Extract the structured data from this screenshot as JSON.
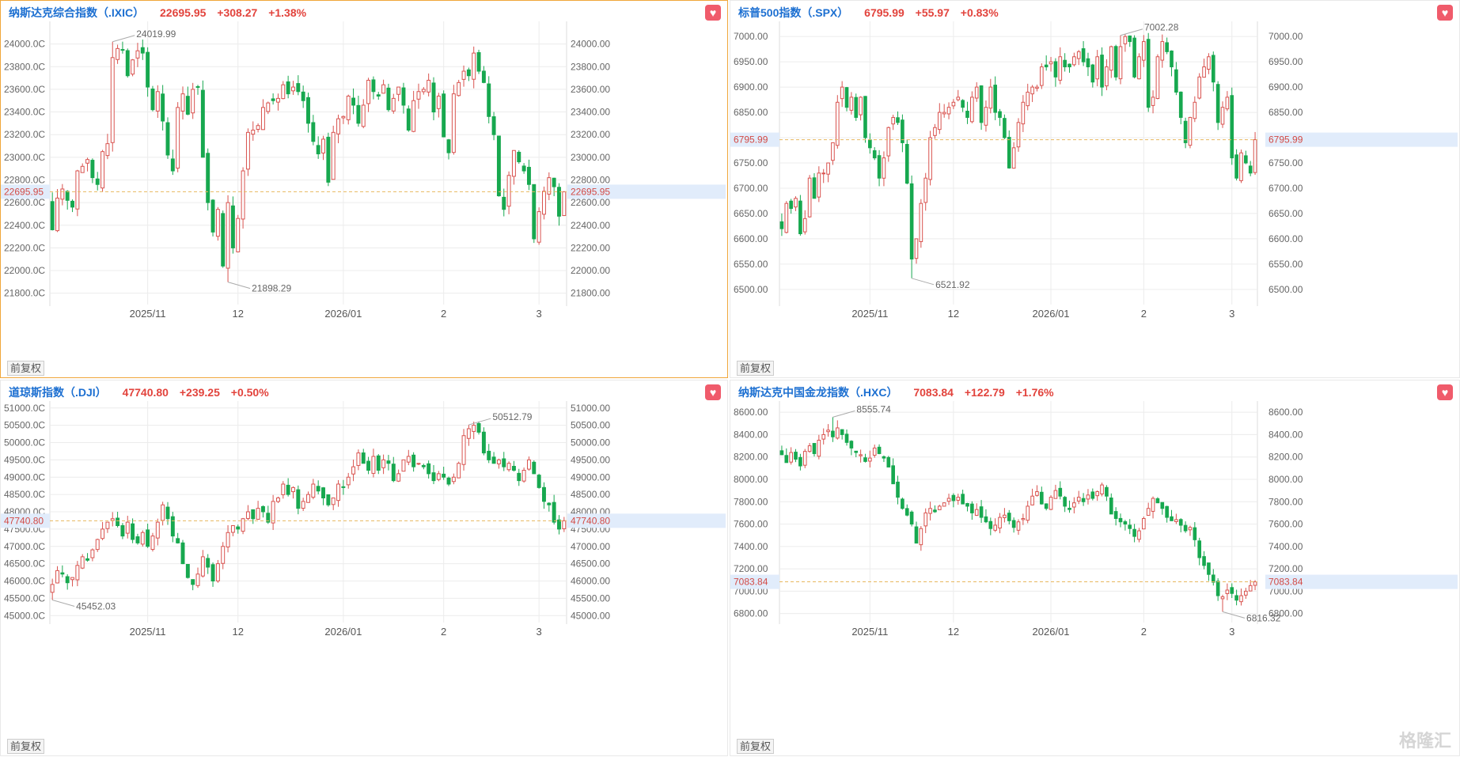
{
  "colors": {
    "up": "#d9534f",
    "down": "#17a84f",
    "grid": "#ececec",
    "ref": "#e8b85f",
    "refLabelBg": "#e1ecfb",
    "refLabelText": "#d24a45"
  },
  "adjust_label": "前复权",
  "watermark": "格隆汇",
  "panels": [
    {
      "name": "纳斯达克综合指数（.IXIC）",
      "price": "22695.95",
      "change": "+308.27",
      "pct": "+1.38%",
      "current_label": "22695.95",
      "max_label": "24019.99",
      "min_label": "21898.29"
    },
    {
      "name": "标普500指数（.SPX）",
      "price": "6795.99",
      "change": "+55.97",
      "pct": "+0.83%",
      "current_label": "6795.99",
      "max_label": "7002.28",
      "min_label": "6521.92"
    },
    {
      "name": "道琼斯指数（.DJI）",
      "price": "47740.80",
      "change": "+239.25",
      "pct": "+0.50%",
      "current_label": "47740.80",
      "max_label": "50512.79",
      "min_label": "45452.03"
    },
    {
      "name": "纳斯达克中国金龙指数（.HXC）",
      "price": "7083.84",
      "change": "+122.79",
      "pct": "+1.76%",
      "current_label": "7083.84",
      "max_label": "8555.74",
      "min_label": "6816.32"
    }
  ],
  "chart_data": [
    {
      "type": "candlestick",
      "title": "纳斯达克综合指数（.IXIC）",
      "ylim": [
        21700,
        24200
      ],
      "yticks": [
        21800,
        22000,
        22200,
        22400,
        22600,
        22800,
        23000,
        23200,
        23400,
        23600,
        23800,
        24000
      ],
      "ytick_labels_left": [
        "21800.0C",
        "22000.0C",
        "22200.0C",
        "22400.0C",
        "22600.0C",
        "22800.0C",
        "23000.0C",
        "23200.0C",
        "23400.0C",
        "23600.0C",
        "23800.0C",
        "24000.0C"
      ],
      "ytick_labels_right": [
        "21800.00",
        "22000.00",
        "22200.00",
        "22400.00",
        "22600.00",
        "22800.00",
        "23000.00",
        "23200.00",
        "23400.00",
        "23600.00",
        "23800.00",
        "24000.00"
      ],
      "xticks": [
        {
          "label": "2025/11",
          "index": 19
        },
        {
          "label": "12",
          "index": 37
        },
        {
          "label": "2026/01",
          "index": 58
        },
        {
          "label": "2",
          "index": 78
        },
        {
          "label": "3",
          "index": 97
        }
      ],
      "current": 22695.95,
      "max": {
        "value": 24019.99,
        "index": 12
      },
      "min": {
        "value": 21898.29,
        "index": 35
      },
      "n": 103,
      "start": 22580,
      "closes": [
        22360,
        22640,
        22720,
        22620,
        22560,
        22880,
        22920,
        22980,
        22820,
        22760,
        23050,
        23120,
        23880,
        23960,
        23950,
        23720,
        23860,
        23940,
        23920,
        23620,
        23420,
        23580,
        23320,
        23020,
        22880,
        23440,
        23560,
        23380,
        23600,
        23620,
        23000,
        22600,
        22340,
        22540,
        22040,
        22600,
        22200,
        22460,
        22880,
        23220,
        23240,
        23280,
        23440,
        23480,
        23500,
        23520,
        23640,
        23560,
        23620,
        23580,
        23500,
        23300,
        23140,
        23030,
        23160,
        22780,
        23220,
        23340,
        23360,
        23540,
        23460,
        23300,
        23460,
        23680,
        23580,
        23540,
        23640,
        23420,
        23520,
        23620,
        23460,
        23240,
        23500,
        23580,
        23600,
        23680,
        23400,
        23540,
        23180,
        23040,
        23560,
        23660,
        23760,
        23720,
        23920,
        23760,
        23660,
        23360,
        23200,
        22660,
        22540,
        22840,
        23060,
        22960,
        22880,
        22760,
        22280,
        22520,
        22700,
        22820,
        22740,
        22480,
        22695.95
      ]
    },
    {
      "type": "candlestick",
      "title": "标普500指数（.SPX）",
      "ylim": [
        6470,
        7030
      ],
      "yticks": [
        6500,
        6550,
        6600,
        6650,
        6700,
        6750,
        6800,
        6850,
        6900,
        6950,
        7000
      ],
      "ytick_labels_left": [
        "6500.00",
        "6550.00",
        "6600.00",
        "6650.00",
        "6700.00",
        "6750.00",
        "6800.00",
        "6850.00",
        "6900.00",
        "6950.00",
        "7000.00"
      ],
      "ytick_labels_right": [
        "6500.00",
        "6550.00",
        "6600.00",
        "6650.00",
        "6700.00",
        "6750.00",
        "6800.00",
        "6850.00",
        "6900.00",
        "6950.00",
        "7000.00"
      ],
      "xticks": [
        {
          "label": "2025/11",
          "index": 19
        },
        {
          "label": "12",
          "index": 37
        },
        {
          "label": "2026/01",
          "index": 58
        },
        {
          "label": "2",
          "index": 78
        },
        {
          "label": "3",
          "index": 97
        }
      ],
      "current": 6795.99,
      "max": {
        "value": 7002.28,
        "index": 73
      },
      "min": {
        "value": 6521.92,
        "index": 28
      },
      "n": 103,
      "start": 6640,
      "closes": [
        6620,
        6670,
        6660,
        6680,
        6610,
        6640,
        6720,
        6680,
        6730,
        6730,
        6750,
        6790,
        6870,
        6900,
        6860,
        6880,
        6840,
        6880,
        6800,
        6780,
        6760,
        6720,
        6760,
        6820,
        6840,
        6830,
        6790,
        6710,
        6560,
        6600,
        6670,
        6720,
        6800,
        6820,
        6850,
        6850,
        6860,
        6870,
        6880,
        6860,
        6840,
        6880,
        6900,
        6830,
        6860,
        6900,
        6850,
        6840,
        6800,
        6740,
        6780,
        6830,
        6870,
        6890,
        6900,
        6900,
        6940,
        6940,
        6950,
        6920,
        6960,
        6940,
        6940,
        6960,
        6970,
        6950,
        6940,
        6910,
        6960,
        6900,
        6940,
        6980,
        6920,
        6980,
        7000,
        6990,
        6920,
        6960,
        6990,
        6860,
        6880,
        6960,
        6990,
        6970,
        6940,
        6890,
        6840,
        6790,
        6840,
        6870,
        6920,
        6940,
        6960,
        6910,
        6830,
        6860,
        6880,
        6760,
        6720,
        6770,
        6750,
        6730,
        6795.99
      ]
    },
    {
      "type": "candlestick",
      "title": "道琼斯指数（.DJI）",
      "ylim": [
        44800,
        51200
      ],
      "yticks": [
        45000,
        45500,
        46000,
        46500,
        47000,
        47500,
        48000,
        48500,
        49000,
        49500,
        50000,
        50500,
        51000
      ],
      "ytick_labels_left": [
        "45000.0C",
        "45500.0C",
        "46000.0C",
        "46500.0C",
        "47000.0C",
        "47500.0C",
        "48000.0C",
        "48500.0C",
        "49000.0C",
        "49500.0C",
        "50000.0C",
        "50500.0C",
        "51000.0C"
      ],
      "ytick_labels_right": [
        "45000.00",
        "45500.00",
        "46000.00",
        "46500.00",
        "47000.00",
        "47500.00",
        "48000.00",
        "48500.00",
        "49000.00",
        "49500.00",
        "50000.00",
        "50500.00",
        "51000.00"
      ],
      "xticks": [
        {
          "label": "2025/11",
          "index": 19
        },
        {
          "label": "12",
          "index": 37
        },
        {
          "label": "2026/01",
          "index": 58
        },
        {
          "label": "2",
          "index": 78
        },
        {
          "label": "3",
          "index": 97
        }
      ],
      "current": 47740.8,
      "max": {
        "value": 50512.79,
        "index": 83
      },
      "min": {
        "value": 45452.03,
        "index": 0
      },
      "n": 103,
      "start": 45700,
      "closes": [
        45900,
        46300,
        46200,
        45950,
        46100,
        46450,
        46700,
        46600,
        46900,
        47200,
        47500,
        47700,
        47800,
        47600,
        47300,
        47700,
        47200,
        47100,
        47400,
        47000,
        47300,
        47700,
        48200,
        47800,
        47300,
        47100,
        46500,
        46100,
        45900,
        46200,
        46700,
        46400,
        46000,
        46500,
        47000,
        47400,
        47600,
        47500,
        47800,
        48000,
        47800,
        48100,
        48000,
        47700,
        48300,
        48400,
        48800,
        48500,
        48700,
        48100,
        48300,
        48500,
        48800,
        48600,
        48400,
        48200,
        48400,
        48800,
        48700,
        49000,
        49300,
        49700,
        49400,
        49200,
        49600,
        49200,
        49500,
        49400,
        48900,
        49100,
        49500,
        49600,
        49300,
        49400,
        49300,
        49100,
        48900,
        49100,
        49000,
        48800,
        49000,
        49400,
        50200,
        50400,
        50500,
        50300,
        49700,
        49500,
        49400,
        49500,
        49300,
        49400,
        49200,
        48900,
        49200,
        49500,
        49100,
        48700,
        48300,
        48200,
        47700,
        47500,
        47740.8
      ]
    },
    {
      "type": "candlestick",
      "title": "纳斯达克中国金龙指数（.HXC）",
      "ylim": [
        6720,
        8700
      ],
      "yticks": [
        6800,
        7000,
        7200,
        7400,
        7600,
        7800,
        8000,
        8200,
        8400,
        8600
      ],
      "ytick_labels_left": [
        "6800.00",
        "7000.00",
        "7200.00",
        "7400.00",
        "7600.00",
        "7800.00",
        "8000.00",
        "8200.00",
        "8400.00",
        "8600.00"
      ],
      "ytick_labels_right": [
        "6800.00",
        "7000.00",
        "7200.00",
        "7400.00",
        "7600.00",
        "7800.00",
        "8000.00",
        "8200.00",
        "8400.00",
        "8600.00"
      ],
      "xticks": [
        {
          "label": "2025/11",
          "index": 19
        },
        {
          "label": "12",
          "index": 37
        },
        {
          "label": "2026/01",
          "index": 58
        },
        {
          "label": "2",
          "index": 78
        },
        {
          "label": "3",
          "index": 97
        }
      ],
      "current": 7083.84,
      "max": {
        "value": 8555.74,
        "index": 11
      },
      "min": {
        "value": 6816.32,
        "index": 95
      },
      "n": 103,
      "start": 8250,
      "closes": [
        8220,
        8150,
        8240,
        8180,
        8120,
        8250,
        8300,
        8230,
        8350,
        8400,
        8440,
        8380,
        8460,
        8400,
        8330,
        8280,
        8240,
        8220,
        8160,
        8190,
        8280,
        8230,
        8190,
        8110,
        7960,
        7840,
        7740,
        7680,
        7600,
        7430,
        7560,
        7700,
        7740,
        7710,
        7760,
        7790,
        7830,
        7810,
        7840,
        7780,
        7760,
        7700,
        7730,
        7660,
        7620,
        7560,
        7590,
        7660,
        7680,
        7630,
        7570,
        7620,
        7650,
        7760,
        7850,
        7890,
        7780,
        7740,
        7840,
        7900,
        7850,
        7760,
        7730,
        7790,
        7840,
        7800,
        7860,
        7830,
        7890,
        7950,
        7850,
        7690,
        7650,
        7620,
        7600,
        7560,
        7490,
        7540,
        7650,
        7740,
        7830,
        7790,
        7740,
        7660,
        7630,
        7640,
        7590,
        7540,
        7570,
        7460,
        7300,
        7230,
        7150,
        7080,
        6960,
        6950,
        7010,
        6980,
        6920,
        6960,
        7000,
        7050,
        7083.84
      ]
    }
  ]
}
